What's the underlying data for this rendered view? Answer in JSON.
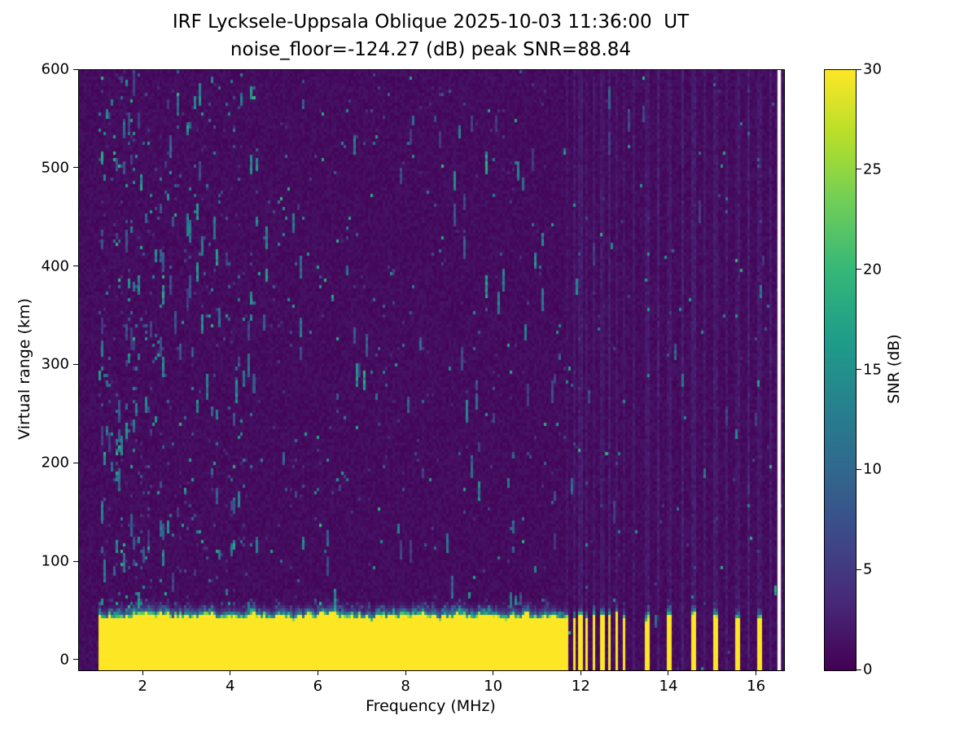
{
  "figure": {
    "background": "#ffffff"
  },
  "chart_data": {
    "type": "heatmap",
    "title": "IRF Lycksele-Uppsala Oblique 2025-10-03 11:36:00  UT",
    "subtitle": "noise_floor=-124.27 (dB) peak SNR=88.84",
    "xlabel": "Frequency (MHz)",
    "ylabel": "Virtual range (km)",
    "xlim": [
      0.53,
      16.62
    ],
    "ylim": [
      -10,
      600
    ],
    "xticks": [
      2,
      4,
      6,
      8,
      10,
      12,
      14,
      16
    ],
    "yticks": [
      0,
      100,
      200,
      300,
      400,
      500,
      600
    ],
    "grid": false,
    "legend": "none",
    "colorbar": {
      "label": "SNR (dB)",
      "min": 0,
      "max": 30,
      "ticks": [
        0,
        5,
        10,
        15,
        20,
        25,
        30
      ],
      "colormap": "viridis",
      "viridis_stops": [
        "#440154",
        "#482878",
        "#3e4989",
        "#31688e",
        "#26828e",
        "#1f9e89",
        "#35b779",
        "#6ece58",
        "#b5de2b",
        "#fde725"
      ]
    },
    "noise_floor_db": -124.27,
    "peak_snr_db": 88.84,
    "features": {
      "background_snr_db": [
        0,
        2
      ],
      "ground_signal": {
        "freq_start": 1.0,
        "freq_solid_end": 11.62,
        "top_km_mean": 45,
        "top_km_jitter": 6,
        "snr": 30
      },
      "stripes": [
        {
          "f": 11.68,
          "w": 0.07
        },
        {
          "f": 11.83,
          "w": 0.07
        },
        {
          "f": 11.98,
          "w": 0.08
        },
        {
          "f": 12.13,
          "w": 0.07
        },
        {
          "f": 12.29,
          "w": 0.08
        },
        {
          "f": 12.47,
          "w": 0.09
        },
        {
          "f": 12.63,
          "w": 0.08
        },
        {
          "f": 12.79,
          "w": 0.08
        },
        {
          "f": 12.96,
          "w": 0.09
        },
        {
          "f": 13.5,
          "w": 0.1
        },
        {
          "f": 14.02,
          "w": 0.11
        },
        {
          "f": 14.56,
          "w": 0.14
        },
        {
          "f": 15.07,
          "w": 0.1
        },
        {
          "f": 15.56,
          "w": 0.06
        },
        {
          "f": 16.06,
          "w": 0.1
        }
      ],
      "faint_lines": [
        13.2,
        13.75,
        14.3,
        14.8,
        15.3,
        15.8,
        16.3
      ],
      "right_gap": [
        16.47,
        16.55
      ],
      "speckle_snr_db": [
        3,
        20
      ],
      "speckle_densest_below_mhz": 4.5
    }
  }
}
